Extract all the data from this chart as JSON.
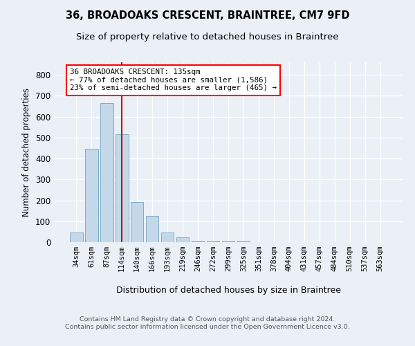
{
  "title1": "36, BROADOAKS CRESCENT, BRAINTREE, CM7 9FD",
  "title2": "Size of property relative to detached houses in Braintree",
  "xlabel": "Distribution of detached houses by size in Braintree",
  "ylabel": "Number of detached properties",
  "bar_color": "#c5d8ea",
  "bar_edgecolor": "#7aafc8",
  "categories": [
    "34sqm",
    "61sqm",
    "87sqm",
    "114sqm",
    "140sqm",
    "166sqm",
    "193sqm",
    "219sqm",
    "246sqm",
    "272sqm",
    "299sqm",
    "325sqm",
    "351sqm",
    "378sqm",
    "404sqm",
    "431sqm",
    "457sqm",
    "484sqm",
    "510sqm",
    "537sqm",
    "563sqm"
  ],
  "values": [
    45,
    448,
    665,
    515,
    193,
    125,
    47,
    22,
    8,
    8,
    8,
    8,
    0,
    0,
    0,
    0,
    0,
    0,
    0,
    0,
    0
  ],
  "red_line_x": 3.5,
  "ylim_max": 860,
  "yticks": [
    0,
    100,
    200,
    300,
    400,
    500,
    600,
    700,
    800
  ],
  "annotation_text": "36 BROADOAKS CRESCENT: 135sqm\n← 77% of detached houses are smaller (1,586)\n23% of semi-detached houses are larger (465) →",
  "footer_line1": "Contains HM Land Registry data © Crown copyright and database right 2024.",
  "footer_line2": "Contains public sector information licensed under the Open Government Licence v3.0.",
  "bg_color": "#eaf0f6",
  "grid_color": "#ffffff"
}
